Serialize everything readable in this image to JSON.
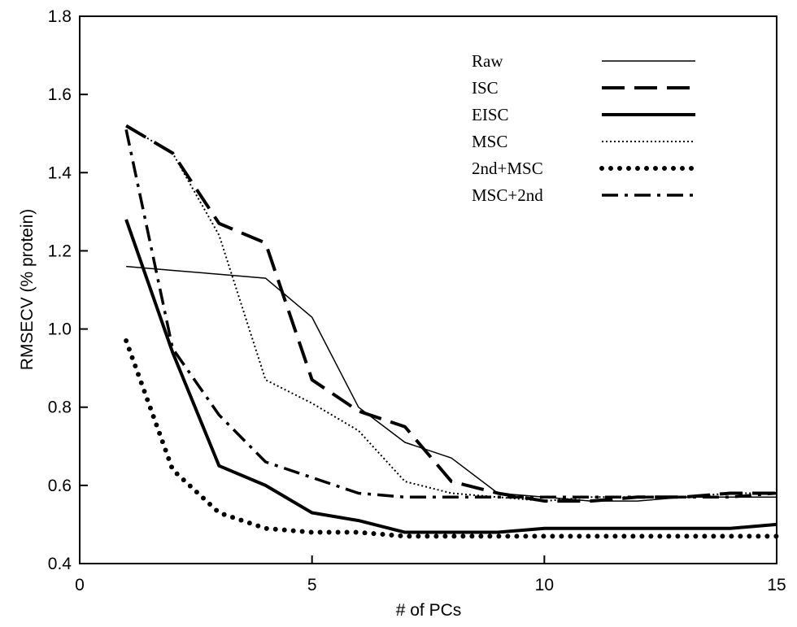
{
  "chart_data": {
    "type": "line",
    "x_label": "# of PCs",
    "y_label": "RMSECV (% protein)",
    "x": [
      1,
      2,
      3,
      4,
      5,
      6,
      7,
      8,
      9,
      10,
      11,
      12,
      13,
      14,
      15
    ],
    "xlim": [
      0,
      15
    ],
    "xticks": [
      0,
      5,
      10,
      15
    ],
    "ylim": [
      0.4,
      1.8
    ],
    "yticks": [
      0.4,
      0.6,
      0.8,
      {
        "value": 1.0,
        "label": "1.0"
      },
      1.2,
      1.4,
      1.6,
      1.8
    ],
    "legend": "upper right",
    "series": [
      {
        "name": "Raw",
        "color": "#000000",
        "line_style": "thin",
        "values": [
          1.16,
          1.15,
          1.14,
          1.13,
          1.03,
          0.8,
          0.71,
          0.67,
          0.58,
          0.57,
          0.56,
          0.56,
          0.57,
          0.57,
          0.57
        ]
      },
      {
        "name": "ISC",
        "color": "#000000",
        "line_style": "long-dash",
        "values": [
          1.52,
          1.45,
          1.27,
          1.22,
          0.87,
          0.79,
          0.75,
          0.61,
          0.58,
          0.56,
          0.56,
          0.57,
          0.57,
          0.58,
          0.58
        ]
      },
      {
        "name": "EISC",
        "color": "#000000",
        "line_style": "thick",
        "values": [
          1.28,
          0.94,
          0.65,
          0.6,
          0.53,
          0.51,
          0.48,
          0.48,
          0.48,
          0.49,
          0.49,
          0.49,
          0.49,
          0.49,
          0.5
        ]
      },
      {
        "name": "MSC",
        "color": "#000000",
        "line_style": "dotted",
        "values": [
          1.52,
          1.45,
          1.24,
          0.87,
          0.81,
          0.74,
          0.61,
          0.58,
          0.57,
          0.56,
          0.57,
          0.57,
          0.57,
          0.58,
          0.58
        ]
      },
      {
        "name": "2nd+MSC",
        "color": "#000000",
        "line_style": "heavy-dots",
        "values": [
          0.97,
          0.64,
          0.53,
          0.49,
          0.48,
          0.48,
          0.47,
          0.47,
          0.47,
          0.47,
          0.47,
          0.47,
          0.47,
          0.47,
          0.47
        ]
      },
      {
        "name": "MSC+2nd",
        "color": "#000000",
        "line_style": "dash-dot",
        "values": [
          1.51,
          0.95,
          0.78,
          0.66,
          0.62,
          0.58,
          0.57,
          0.57,
          0.57,
          0.57,
          0.57,
          0.57,
          0.57,
          0.57,
          0.58
        ]
      }
    ]
  }
}
